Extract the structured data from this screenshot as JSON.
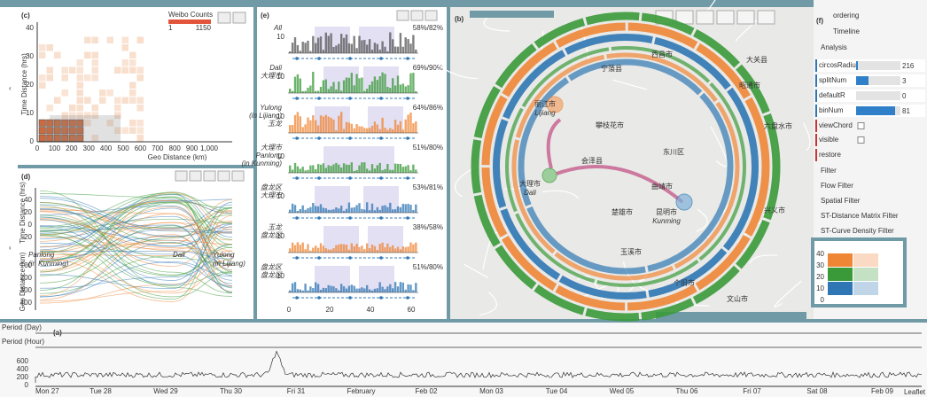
{
  "panel_c": {
    "label": "(c)",
    "legend_title": "Weibo Counts",
    "legend_min": "1",
    "legend_max": "1150",
    "y_label": "Time Distance (hrs)",
    "x_label": "Geo Distance (km)",
    "x_ticks": [
      "0",
      "100",
      "200",
      "300",
      "400",
      "500",
      "600",
      "700",
      "800",
      "900",
      "1,000"
    ],
    "y_ticks": [
      "0",
      "10",
      "20",
      "30",
      "40"
    ]
  },
  "panel_d": {
    "label": "(d)",
    "y_label_top": "Time Distance (hrs)",
    "y_label_bottom": "Geo Distance (km)",
    "y_ticks_top": [
      "40",
      "20",
      "0",
      "-20"
    ],
    "y_ticks_bottom": [
      "100",
      "200",
      "300",
      "400"
    ],
    "nodes": [
      {
        "lines": [
          "Panlong",
          "(in Kunming)"
        ]
      },
      {
        "lines": [
          "Dali"
        ]
      },
      {
        "lines": [
          "Yulong",
          "(in Lijiang)"
        ]
      }
    ]
  },
  "panel_e": {
    "label": "(e)",
    "rows": [
      {
        "labels": [
          "All"
        ],
        "tick": "10",
        "ratio": "58%/82%"
      },
      {
        "labels": [
          "Dali",
          "大理市"
        ],
        "tick": "10",
        "ratio": "69%/90%"
      },
      {
        "labels": [
          "Yulong",
          "(in Lijiang)",
          "玉龙"
        ],
        "tick": "10",
        "ratio": "64%/86%"
      },
      {
        "labels": [
          "大理市",
          "Panlong",
          "(in Kunming)"
        ],
        "tick": "10",
        "ratio": "51%/80%"
      },
      {
        "labels": [
          "盘龙区",
          "大理市"
        ],
        "tick": "10",
        "ratio": "53%/81%"
      },
      {
        "labels": [
          "玉龙",
          "盘龙区"
        ],
        "tick": "10",
        "ratio": "38%/58%"
      },
      {
        "labels": [
          "盘龙区",
          "盘龙区"
        ],
        "tick": "10",
        "ratio": "51%/80%"
      }
    ],
    "x_ticks": [
      "0",
      "20",
      "40",
      "60"
    ]
  },
  "panel_b": {
    "label": "(b)",
    "cities": [
      {
        "cn": "丽江市",
        "en": "Lijiang"
      },
      {
        "cn": "大理市",
        "en": "Dali"
      },
      {
        "cn": "昆明市",
        "en": "Kunming"
      }
    ],
    "places": [
      "西昌市",
      "攀枝花市",
      "会泽县",
      "东川区",
      "曲靖市",
      "楚雄市",
      "玉溪市",
      "个旧市",
      "文山市",
      "六盘水市",
      "大关县",
      "昭通市",
      "兴义市",
      "宁蒗县"
    ]
  },
  "panel_f": {
    "label": "(f)",
    "items": [
      "ordering",
      "Timeline",
      "Analysis"
    ],
    "params": [
      {
        "name": "circosRadius...",
        "value": "216"
      },
      {
        "name": "splitNum",
        "value": "3"
      },
      {
        "name": "defaultR",
        "value": "0"
      },
      {
        "name": "binNum",
        "value": "81"
      }
    ],
    "checks": [
      "viewChord",
      "visible"
    ],
    "restore": "restore",
    "filters": [
      "Filter",
      "Flow Filter",
      "Spatial Filter",
      "ST-Distance Matrix Filter",
      "ST-Curve Density Filter"
    ],
    "inset_ticks": [
      "40",
      "30",
      "20",
      "10",
      "0"
    ]
  },
  "panel_a": {
    "label": "(a)",
    "row_day": "Period (Day)",
    "row_hour": "Period (Hour)",
    "y_ticks": [
      "600",
      "400",
      "200",
      "0"
    ],
    "dates": [
      "Mon 27",
      "Tue 28",
      "Wed 29",
      "Thu 30",
      "Fri 31",
      "February",
      "Feb 02",
      "Mon 03",
      "Tue 04",
      "Wed 05",
      "Thu 06",
      "Fri 07",
      "Sat 08",
      "Feb 09"
    ],
    "attribution": "Leaflet"
  }
}
